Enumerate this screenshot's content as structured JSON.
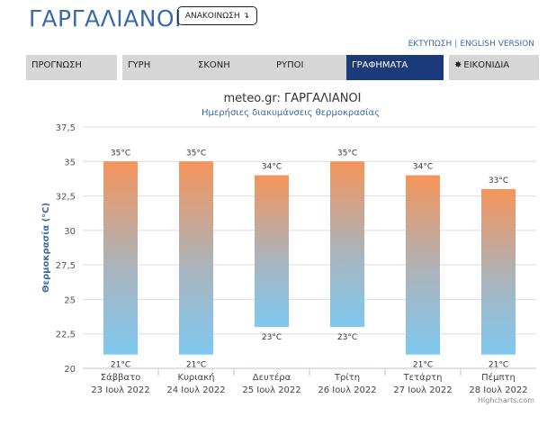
{
  "header": {
    "title": "ΓΑΡΓΑΛΙΑΝΟΙ",
    "announce_label": "ΑΝΑΚΟΙΝΩΣΗ",
    "announce_icon": "arrow-icon",
    "print_link": "ΕΚΤΥΠΩΣΗ",
    "separator": "|",
    "english_link": "ENGLISH VERSION"
  },
  "tabs": [
    {
      "label": "ΠΡΟΓΝΩΣΗ",
      "active": false
    },
    {
      "label": "ΓΥΡΗ",
      "active": false
    },
    {
      "label": "ΣΚΟΝΗ",
      "active": false
    },
    {
      "label": "ΡΥΠΟΙ",
      "active": false
    },
    {
      "label": "ΓΡΑΦΗΜΑΤΑ",
      "active": true
    },
    {
      "label": "ΕΙΚΟΝΙΔΙΑ",
      "active": false,
      "icon": "gear-icon"
    }
  ],
  "colors": {
    "title": "#3a6aa8",
    "active_tab": "#1c3b7a",
    "tab": "#d6d6d6",
    "bar_top": "#f5945a",
    "bar_bottom": "#7fc8f0"
  },
  "chart_data": {
    "type": "bar",
    "title": "meteo.gr: ΓΑΡΓΑΛΙΑΝΟΙ",
    "subtitle": "Ημερήσιες διακυμάνσεις θερμοκρασίας",
    "ylabel": "Θερμοκρασία (°C)",
    "ylim": [
      20,
      37.5
    ],
    "yticks": [
      "20",
      "22,5",
      "25",
      "27,5",
      "30",
      "32,5",
      "35",
      "37,5"
    ],
    "categories": [
      {
        "day": "Σάββατο",
        "date": "23 Ιουλ 2022"
      },
      {
        "day": "Κυριακή",
        "date": "24 Ιουλ 2022"
      },
      {
        "day": "Δευτέρα",
        "date": "25 Ιουλ 2022"
      },
      {
        "day": "Τρίτη",
        "date": "26 Ιουλ 2022"
      },
      {
        "day": "Τετάρτη",
        "date": "27 Ιουλ 2022"
      },
      {
        "day": "Πέμπτη",
        "date": "28 Ιουλ 2022"
      }
    ],
    "low": [
      21,
      21,
      23,
      23,
      21,
      21
    ],
    "high": [
      35,
      35,
      34,
      35,
      34,
      33
    ],
    "low_labels": [
      "21°C",
      "21°C",
      "23°C",
      "23°C",
      "21°C",
      "21°C"
    ],
    "high_labels": [
      "35°C",
      "35°C",
      "34°C",
      "35°C",
      "34°C",
      "33°C"
    ],
    "grid": true,
    "credits": "Highcharts.com"
  }
}
